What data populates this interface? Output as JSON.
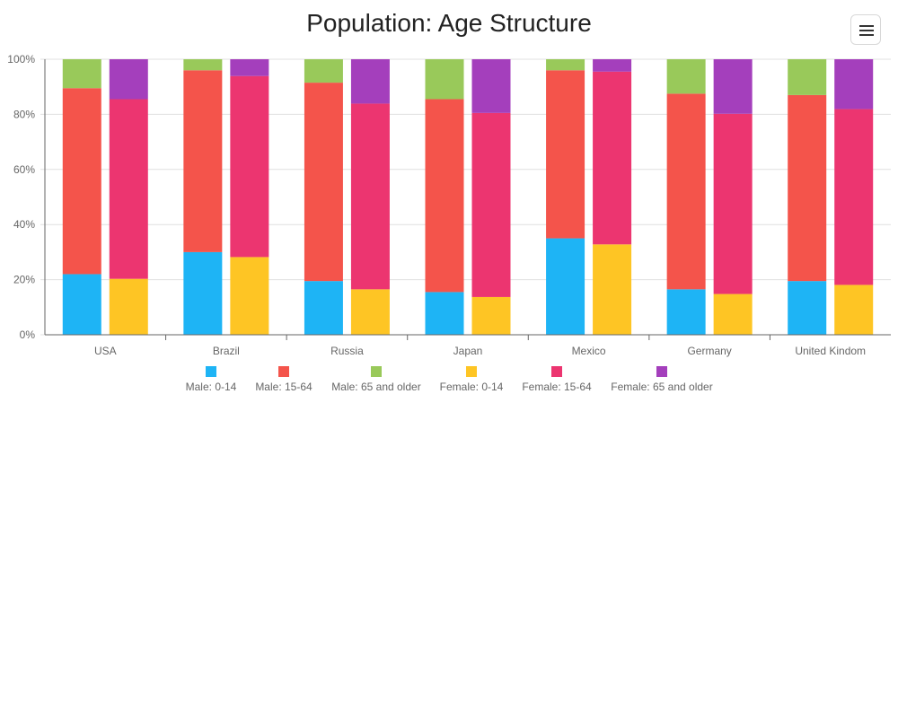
{
  "menu": {
    "icon": "hamburger-menu-icon"
  },
  "chart_data": {
    "type": "bar",
    "stacked": true,
    "percent": true,
    "title": "Population: Age Structure",
    "xlabel": "",
    "ylabel": "",
    "ylim": [
      0,
      100
    ],
    "y_ticks": [
      "0%",
      "20%",
      "40%",
      "60%",
      "80%",
      "100%"
    ],
    "grid": true,
    "legend_position": "bottom",
    "categories": [
      "USA",
      "Brazil",
      "Russia",
      "Japan",
      "Mexico",
      "Germany",
      "United Kindom"
    ],
    "groups": [
      {
        "name": "Male",
        "series": [
          {
            "name": "Male: 0-14",
            "color": "#1eb4f5",
            "values": [
              22,
              30,
              19.5,
              15.5,
              35,
              16.5,
              19.5
            ]
          },
          {
            "name": "Male: 15-64",
            "color": "#f4544b",
            "values": [
              67.5,
              66,
              72,
              70,
              61,
              71,
              67.5
            ]
          },
          {
            "name": "Male: 65 and older",
            "color": "#99c95a",
            "values": [
              10.5,
              4,
              8.5,
              14.5,
              4,
              12.5,
              13
            ]
          }
        ]
      },
      {
        "name": "Female",
        "series": [
          {
            "name": "Female: 0-14",
            "color": "#fec524",
            "values": [
              20.3,
              28.2,
              16.5,
              13.7,
              32.8,
              14.8,
              18.1
            ]
          },
          {
            "name": "Female: 15-64",
            "color": "#ec3570",
            "values": [
              65.2,
              65.7,
              67.4,
              66.8,
              62.7,
              65.4,
              63.8
            ]
          },
          {
            "name": "Female: 65 and older",
            "color": "#a43fbc",
            "values": [
              14.5,
              6.1,
              16.1,
              19.5,
              4.5,
              19.8,
              18.1
            ]
          }
        ]
      }
    ]
  }
}
